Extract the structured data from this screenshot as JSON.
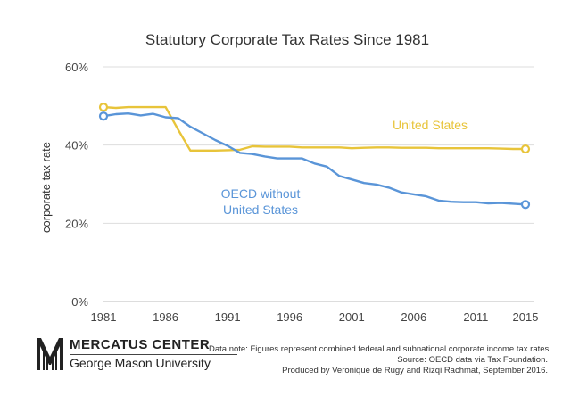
{
  "chart_data": {
    "type": "line",
    "title": "Statutory Corporate Tax Rates Since 1981",
    "ylabel": "corporate tax rate",
    "ylim": [
      0,
      60
    ],
    "xlim": [
      1981,
      2015
    ],
    "x_ticks": [
      "1981",
      "1986",
      "1991",
      "1996",
      "2001",
      "2006",
      "2011",
      "2015"
    ],
    "y_ticks": [
      "0%",
      "20%",
      "40%",
      "60%"
    ],
    "grid": "horizontal",
    "series": [
      {
        "name": "United States",
        "color": "#e8c43a",
        "x": [
          1981,
          1982,
          1983,
          1984,
          1985,
          1986,
          1987,
          1988,
          1989,
          1990,
          1991,
          1992,
          1993,
          1994,
          1995,
          1996,
          1997,
          1998,
          1999,
          2000,
          2001,
          2002,
          2003,
          2004,
          2005,
          2006,
          2007,
          2008,
          2009,
          2010,
          2011,
          2012,
          2013,
          2014,
          2015
        ],
        "values": [
          49.7,
          49.5,
          49.7,
          49.7,
          49.7,
          49.7,
          44.0,
          38.6,
          38.6,
          38.6,
          38.7,
          38.8,
          39.7,
          39.6,
          39.6,
          39.6,
          39.4,
          39.4,
          39.4,
          39.4,
          39.2,
          39.3,
          39.4,
          39.4,
          39.3,
          39.3,
          39.3,
          39.2,
          39.2,
          39.2,
          39.2,
          39.2,
          39.1,
          39.0,
          39.0
        ]
      },
      {
        "name": "OECD without United States",
        "name_lines": [
          "OECD without",
          "United States"
        ],
        "color": "#5a95d8",
        "x": [
          1981,
          1982,
          1983,
          1984,
          1985,
          1986,
          1987,
          1988,
          1989,
          1990,
          1991,
          1992,
          1993,
          1994,
          1995,
          1996,
          1997,
          1998,
          1999,
          2000,
          2001,
          2002,
          2003,
          2004,
          2005,
          2006,
          2007,
          2008,
          2009,
          2010,
          2011,
          2012,
          2013,
          2014,
          2015
        ],
        "values": [
          47.4,
          47.9,
          48.1,
          47.6,
          48.0,
          47.1,
          46.9,
          44.7,
          43.0,
          41.3,
          39.8,
          38.0,
          37.7,
          37.1,
          36.6,
          36.6,
          36.6,
          35.3,
          34.5,
          32.1,
          31.2,
          30.3,
          29.9,
          29.1,
          27.9,
          27.4,
          26.9,
          25.8,
          25.5,
          25.4,
          25.4,
          25.1,
          25.2,
          25.0,
          24.8
        ]
      }
    ]
  },
  "footer": {
    "org_name": "MERCATUS CENTER",
    "org_sub": "George Mason University",
    "note_1": "Data note: Figures represent combined federal and subnational corporate income tax rates.",
    "note_2": "Source: OECD data via Tax Foundation.",
    "note_3": "Produced by Veronique de Rugy and Rizqi Rachmat, September 2016."
  }
}
